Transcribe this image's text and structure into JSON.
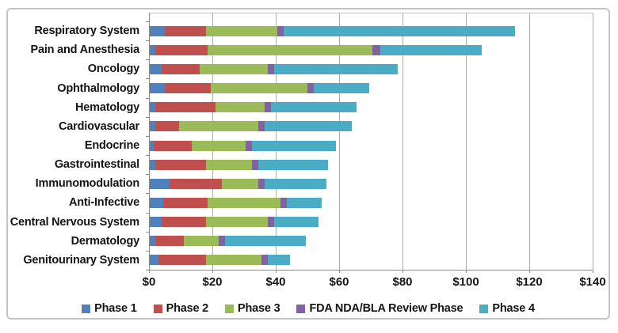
{
  "chart_data": {
    "type": "bar",
    "orientation": "horizontal",
    "stacked": true,
    "grid": true,
    "legend_position": "bottom",
    "xlim": [
      0,
      140
    ],
    "x_tick_values": [
      0,
      20,
      40,
      60,
      80,
      100,
      120,
      140
    ],
    "x_tick_labels": [
      "$0",
      "$20",
      "$40",
      "$60",
      "$80",
      "$100",
      "$120",
      "$140"
    ],
    "categories": [
      "Respiratory System",
      "Pain and Anesthesia",
      "Oncology",
      "Ophthalmology",
      "Hematology",
      "Cardiovascular",
      "Endocrine",
      "Gastrointestinal",
      "Immunomodulation",
      "Anti-Infective",
      "Central Nervous System",
      "Dermatology",
      "Genitourinary System"
    ],
    "series": [
      {
        "name": "Phase 1",
        "color": "#4F81BD",
        "values": [
          5,
          2,
          4,
          5,
          2,
          2,
          1.5,
          2,
          6.5,
          4.5,
          4,
          2,
          3
        ]
      },
      {
        "name": "Phase 2",
        "color": "#C0504D",
        "values": [
          13,
          16.5,
          12,
          14.5,
          19,
          7.5,
          12,
          16,
          16.5,
          14,
          14,
          9,
          15
        ]
      },
      {
        "name": "Phase 3",
        "color": "#9BBB59",
        "values": [
          22.5,
          52,
          21.5,
          30.5,
          15.5,
          25,
          17,
          14.5,
          11.5,
          23,
          19.5,
          11,
          17.5
        ]
      },
      {
        "name": "FDA NDA/BLA Review Phase",
        "color": "#8064A2",
        "values": [
          2,
          2.5,
          2,
          2,
          2,
          2,
          2,
          2,
          2,
          2,
          2,
          2,
          2
        ]
      },
      {
        "name": "Phase 4",
        "color": "#4BACC6",
        "values": [
          73,
          32,
          39,
          17.5,
          27,
          27.5,
          26.5,
          22,
          19.5,
          11,
          14,
          25.5,
          7
        ]
      }
    ]
  },
  "colors": {
    "gridline": "#B0B0B0",
    "axis": "#8A8A8A",
    "chart_border": "#C6C6C6",
    "text": "#141414"
  }
}
